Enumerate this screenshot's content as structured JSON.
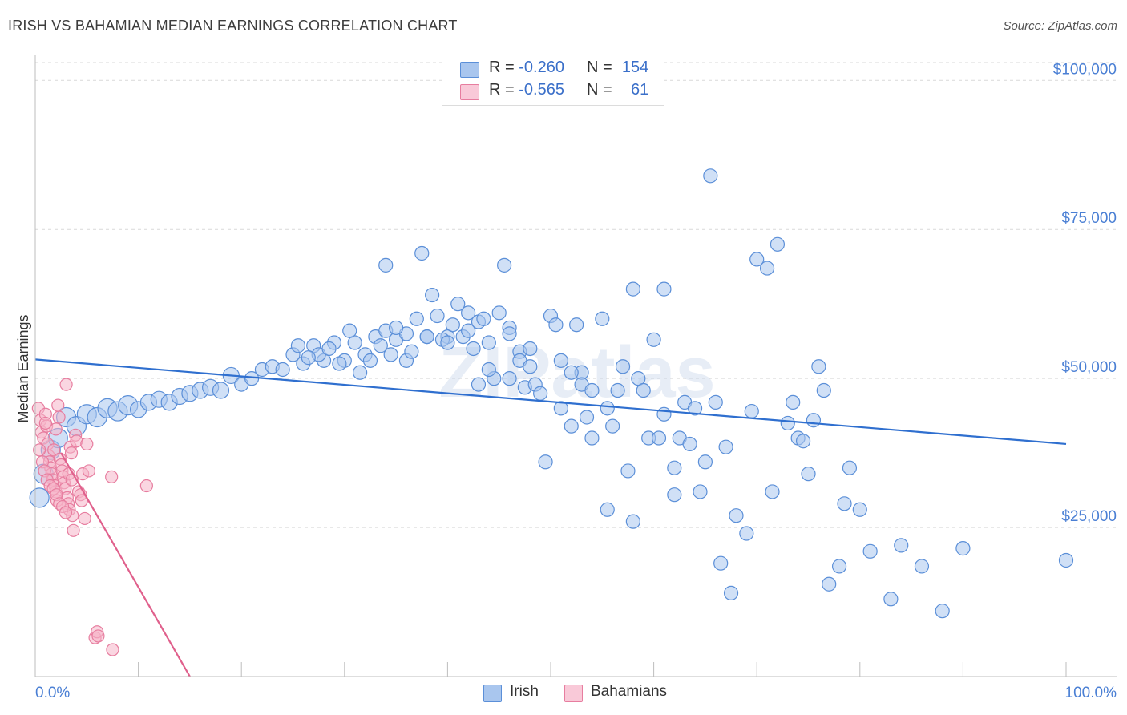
{
  "title": "IRISH VS BAHAMIAN MEDIAN EARNINGS CORRELATION CHART",
  "source": "Source: ZipAtlas.com",
  "watermark": "ZIPatlas",
  "legend_top": {
    "rows": [
      {
        "r_label": "R =",
        "r_value": "-0.260",
        "n_label": "N =",
        "n_value": "154"
      },
      {
        "r_label": "R =",
        "r_value": "-0.565",
        "n_label": "N =",
        "n_value": "61"
      }
    ]
  },
  "legend_bottom": {
    "irish": "Irish",
    "bahamians": "Bahamians"
  },
  "colors": {
    "irish_fill": "#a9c6ee",
    "irish_stroke": "#5b8fd8",
    "irish_line": "#2f6fcf",
    "bahamian_fill": "#f6b4c8",
    "bahamian_stroke": "#e77d9f",
    "bahamian_line": "#e0608c",
    "grid": "#d9d9d9",
    "tick_text": "#4a7fd4"
  },
  "chart_data": {
    "type": "scatter",
    "title": "IRISH VS BAHAMIAN MEDIAN EARNINGS CORRELATION CHART",
    "xlabel": "",
    "ylabel": "Median Earnings",
    "xlim": [
      0,
      100
    ],
    "ylim": [
      0,
      103000
    ],
    "x_tick_labels": [
      "0.0%",
      "100.0%"
    ],
    "y_ticks": [
      25000,
      50000,
      75000,
      100000
    ],
    "y_tick_labels": [
      "$25,000",
      "$50,000",
      "$75,000",
      "$100,000"
    ],
    "grid": true,
    "series": [
      {
        "name": "Irish",
        "trend": {
          "x": [
            0,
            100
          ],
          "y": [
            53200,
            39000
          ]
        },
        "points": [
          [
            0.4,
            30000
          ],
          [
            0.8,
            34000
          ],
          [
            1.5,
            38000
          ],
          [
            2.2,
            40000
          ],
          [
            3.0,
            43500
          ],
          [
            4.0,
            42000
          ],
          [
            5.0,
            44000
          ],
          [
            6.0,
            43500
          ],
          [
            7.0,
            45000
          ],
          [
            8.0,
            44500
          ],
          [
            9.0,
            45500
          ],
          [
            10.0,
            44800
          ],
          [
            11.0,
            46000
          ],
          [
            12.0,
            46500
          ],
          [
            13.0,
            46000
          ],
          [
            14.0,
            47000
          ],
          [
            15.0,
            47500
          ],
          [
            16.0,
            48000
          ],
          [
            17.0,
            48500
          ],
          [
            18.0,
            48000
          ],
          [
            19.0,
            50500
          ],
          [
            20.0,
            49000
          ],
          [
            21.0,
            50000
          ],
          [
            22.0,
            51500
          ],
          [
            23.0,
            52000
          ],
          [
            24.0,
            51500
          ],
          [
            25.0,
            54000
          ],
          [
            26.0,
            52500
          ],
          [
            27.0,
            55500
          ],
          [
            28.0,
            53000
          ],
          [
            29.0,
            56000
          ],
          [
            30.0,
            53000
          ],
          [
            31.0,
            56000
          ],
          [
            32.0,
            54000
          ],
          [
            33.0,
            57000
          ],
          [
            34.0,
            58000
          ],
          [
            35.0,
            56500
          ],
          [
            36.0,
            53000
          ],
          [
            37.0,
            60000
          ],
          [
            38.0,
            57000
          ],
          [
            39.0,
            60500
          ],
          [
            40.0,
            57000
          ],
          [
            41.0,
            62500
          ],
          [
            42.0,
            61000
          ],
          [
            43.0,
            59500
          ],
          [
            44.0,
            56000
          ],
          [
            45.0,
            61000
          ],
          [
            46.0,
            58500
          ],
          [
            47.0,
            54500
          ],
          [
            48.0,
            55000
          ],
          [
            36.0,
            57500
          ],
          [
            30.5,
            58000
          ],
          [
            27.5,
            54000
          ],
          [
            33.5,
            55500
          ],
          [
            39.5,
            56500
          ],
          [
            43.5,
            60000
          ],
          [
            35.0,
            58500
          ],
          [
            34.0,
            69000
          ],
          [
            37.5,
            71000
          ],
          [
            38.5,
            64000
          ],
          [
            40.5,
            59000
          ],
          [
            41.5,
            57000
          ],
          [
            42.5,
            55000
          ],
          [
            43.0,
            49000
          ],
          [
            44.5,
            50000
          ],
          [
            45.5,
            69000
          ],
          [
            46.0,
            57500
          ],
          [
            47.0,
            53000
          ],
          [
            47.5,
            48500
          ],
          [
            48.0,
            52000
          ],
          [
            48.5,
            49000
          ],
          [
            49.0,
            47500
          ],
          [
            50.0,
            60500
          ],
          [
            50.5,
            59000
          ],
          [
            51.0,
            45000
          ],
          [
            52.0,
            42000
          ],
          [
            52.5,
            59000
          ],
          [
            53.0,
            51000
          ],
          [
            53.5,
            43500
          ],
          [
            54.0,
            40000
          ],
          [
            55.0,
            60000
          ],
          [
            55.5,
            45000
          ],
          [
            56.5,
            48000
          ],
          [
            57.0,
            52000
          ],
          [
            58.0,
            65000
          ],
          [
            58.5,
            50000
          ],
          [
            59.0,
            48000
          ],
          [
            60.0,
            56500
          ],
          [
            61.0,
            44000
          ],
          [
            62.0,
            35000
          ],
          [
            62.5,
            40000
          ],
          [
            63.0,
            46000
          ],
          [
            64.0,
            45000
          ],
          [
            65.0,
            36000
          ],
          [
            66.0,
            46000
          ],
          [
            67.0,
            38500
          ],
          [
            68.0,
            27000
          ],
          [
            69.0,
            24000
          ],
          [
            70.0,
            70000
          ],
          [
            71.0,
            68500
          ],
          [
            72.0,
            72500
          ],
          [
            73.0,
            42500
          ],
          [
            74.0,
            40000
          ],
          [
            75.0,
            34000
          ],
          [
            76.0,
            52000
          ],
          [
            76.5,
            48000
          ],
          [
            77.0,
            15500
          ],
          [
            78.0,
            18500
          ],
          [
            78.5,
            29000
          ],
          [
            79.0,
            35000
          ],
          [
            80.0,
            28000
          ],
          [
            81.0,
            21000
          ],
          [
            83.0,
            13000
          ],
          [
            84.0,
            22000
          ],
          [
            86.0,
            18500
          ],
          [
            88.0,
            11000
          ],
          [
            90.0,
            21500
          ],
          [
            100.0,
            19500
          ],
          [
            65.5,
            84000
          ],
          [
            62.0,
            30500
          ],
          [
            64.5,
            31000
          ],
          [
            66.5,
            19000
          ],
          [
            67.5,
            14000
          ],
          [
            59.5,
            40000
          ],
          [
            57.5,
            34500
          ],
          [
            55.5,
            28000
          ],
          [
            56.0,
            42000
          ],
          [
            58.0,
            26000
          ],
          [
            61.0,
            65000
          ],
          [
            49.5,
            36000
          ],
          [
            53.0,
            49000
          ],
          [
            54.0,
            48000
          ],
          [
            51.0,
            53000
          ],
          [
            52.0,
            51000
          ],
          [
            60.5,
            40000
          ],
          [
            63.5,
            39000
          ],
          [
            69.5,
            44500
          ],
          [
            71.5,
            31000
          ],
          [
            73.5,
            46000
          ],
          [
            74.5,
            39500
          ],
          [
            75.5,
            43000
          ],
          [
            46.0,
            50000
          ],
          [
            44.0,
            51500
          ],
          [
            42.0,
            58000
          ],
          [
            40.0,
            56000
          ],
          [
            38.0,
            57000
          ],
          [
            36.5,
            54500
          ],
          [
            34.5,
            54000
          ],
          [
            32.5,
            53000
          ],
          [
            31.5,
            51000
          ],
          [
            29.5,
            52500
          ],
          [
            28.5,
            55000
          ],
          [
            26.5,
            53500
          ],
          [
            25.5,
            55500
          ]
        ]
      },
      {
        "name": "Bahamians",
        "trend": {
          "x": [
            2.5,
            15.0
          ],
          "y": [
            37500,
            0
          ]
        },
        "points": [
          [
            0.3,
            45000
          ],
          [
            0.5,
            43000
          ],
          [
            0.6,
            41000
          ],
          [
            0.8,
            40000
          ],
          [
            1.0,
            44000
          ],
          [
            1.1,
            42000
          ],
          [
            1.2,
            39000
          ],
          [
            1.3,
            37000
          ],
          [
            1.4,
            36000
          ],
          [
            1.5,
            35000
          ],
          [
            1.6,
            34000
          ],
          [
            1.7,
            33000
          ],
          [
            1.8,
            38000
          ],
          [
            1.9,
            32000
          ],
          [
            2.0,
            31000
          ],
          [
            2.1,
            29500
          ],
          [
            2.2,
            45500
          ],
          [
            2.3,
            43500
          ],
          [
            2.4,
            36500
          ],
          [
            2.5,
            35500
          ],
          [
            2.6,
            34500
          ],
          [
            2.7,
            33500
          ],
          [
            2.8,
            32500
          ],
          [
            2.9,
            31500
          ],
          [
            3.0,
            49000
          ],
          [
            3.1,
            30000
          ],
          [
            3.2,
            29000
          ],
          [
            3.3,
            28000
          ],
          [
            3.4,
            38500
          ],
          [
            3.5,
            37500
          ],
          [
            3.6,
            27000
          ],
          [
            3.7,
            24500
          ],
          [
            3.9,
            40500
          ],
          [
            4.0,
            39500
          ],
          [
            4.2,
            31000
          ],
          [
            4.4,
            30500
          ],
          [
            4.5,
            29500
          ],
          [
            4.6,
            34000
          ],
          [
            4.8,
            26500
          ],
          [
            5.0,
            39000
          ],
          [
            0.4,
            38000
          ],
          [
            0.7,
            36000
          ],
          [
            0.9,
            34500
          ],
          [
            1.15,
            33000
          ],
          [
            1.45,
            32000
          ],
          [
            1.75,
            31500
          ],
          [
            2.05,
            30500
          ],
          [
            2.35,
            29000
          ],
          [
            2.65,
            28500
          ],
          [
            2.95,
            27500
          ],
          [
            3.25,
            34000
          ],
          [
            3.55,
            33000
          ],
          [
            5.2,
            34500
          ],
          [
            5.8,
            6500
          ],
          [
            6.0,
            7500
          ],
          [
            6.1,
            6800
          ],
          [
            7.4,
            33500
          ],
          [
            7.5,
            4500
          ],
          [
            10.8,
            32000
          ],
          [
            1.0,
            42500
          ],
          [
            2.0,
            41500
          ]
        ]
      }
    ]
  }
}
